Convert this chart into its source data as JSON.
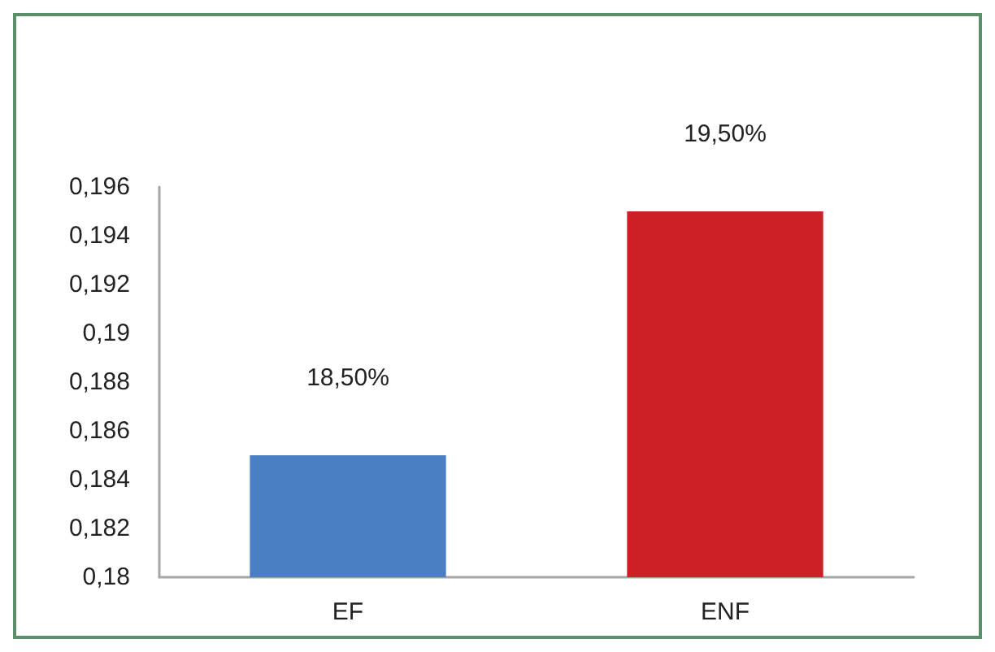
{
  "chart_data": {
    "type": "bar",
    "categories": [
      "EF",
      "ENF"
    ],
    "values": [
      0.185,
      0.195
    ],
    "colors": [
      "#4a80c2",
      "#cc1f26"
    ],
    "value_labels": [
      "18,50%",
      "19,50%"
    ],
    "ylim": [
      0.18,
      0.196
    ],
    "yticks": [
      {
        "value": 0.18,
        "label": "0,18"
      },
      {
        "value": 0.182,
        "label": "0,182"
      },
      {
        "value": 0.184,
        "label": "0,184"
      },
      {
        "value": 0.186,
        "label": "0,186"
      },
      {
        "value": 0.188,
        "label": "0,188"
      },
      {
        "value": 0.19,
        "label": "0,19"
      },
      {
        "value": 0.192,
        "label": "0,192"
      },
      {
        "value": 0.194,
        "label": "0,194"
      },
      {
        "value": 0.196,
        "label": "0,196"
      }
    ]
  }
}
